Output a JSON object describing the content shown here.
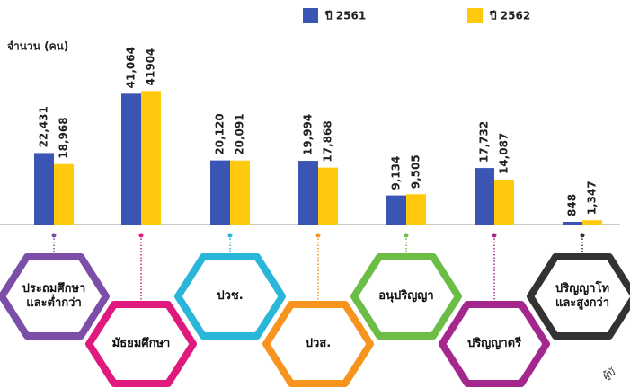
{
  "chart_data": {
    "type": "bar",
    "y_label": "จำนวน (คน)",
    "categories": [
      "ประถมศึกษา\nและต่ำกว่า",
      "มัธยมศึกษา",
      "ปวช.",
      "ปวส.",
      "อนุปริญญา",
      "ปริญญาตรี",
      "ปริญญาโท\nและสูงกว่า"
    ],
    "category_colors": [
      "#7b4fa8",
      "#e0197d",
      "#29b6d8",
      "#f7941d",
      "#6cbd45",
      "#a4278e",
      "#333333"
    ],
    "series": [
      {
        "name": "ปี 2561",
        "color": "#3a55b4",
        "values": [
          22431,
          41064,
          20120,
          19994,
          9134,
          17732,
          848
        ],
        "value_labels": [
          "22,431",
          "41,064",
          "20,120",
          "19,994",
          "9,134",
          "17,732",
          "848"
        ]
      },
      {
        "name": "ปี 2562",
        "color": "#ffc90e",
        "values": [
          18968,
          41904,
          20091,
          17868,
          9505,
          14087,
          1347
        ],
        "value_labels": [
          "18,968",
          "41904",
          "20,091",
          "17,868",
          "9,505",
          "14,087",
          "1,347"
        ]
      }
    ],
    "ylim": [
      0,
      42000
    ],
    "annotation": "ผู้บั"
  }
}
